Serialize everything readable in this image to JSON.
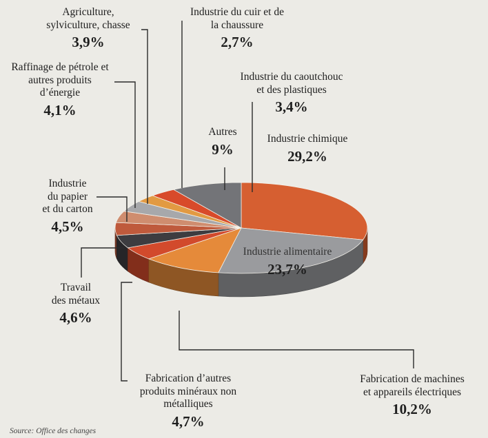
{
  "chart_data": {
    "type": "pie",
    "title": "",
    "slices": [
      {
        "label": "Industrie chimique",
        "value": 29.2,
        "display": "29,2%",
        "color": "#d65f31"
      },
      {
        "label": "Industrie alimentaire",
        "value": 23.7,
        "display": "23,7%",
        "color": "#9a9b9e"
      },
      {
        "label": "Fabrication de machines\net appareils électriques",
        "value": 10.2,
        "display": "10,2%",
        "color": "#e58a3a"
      },
      {
        "label": "Fabrication d’autres\nproduits minéraux non\nmétalliques",
        "value": 4.7,
        "display": "4,7%",
        "color": "#d24a2c"
      },
      {
        "label": "Travail\ndes métaux",
        "value": 4.6,
        "display": "4,6%",
        "color": "#3d3c40"
      },
      {
        "label": "Industrie\ndu papier\net du carton",
        "value": 4.5,
        "display": "4,5%",
        "color": "#bf5a3c"
      },
      {
        "label": "Raffinage de pétrole et\nautres produits\nd’énergie",
        "value": 4.1,
        "display": "4,1%",
        "color": "#cf8d6f"
      },
      {
        "label": "Agriculture,\nsylviculture, chasse",
        "value": 3.9,
        "display": "3,9%",
        "color": "#a7a8ab"
      },
      {
        "label": "Industrie du cuir et de\nla chaussure",
        "value": 2.7,
        "display": "2,7%",
        "color": "#e29a42"
      },
      {
        "label": "Industrie du caoutchouc\net des plastiques",
        "value": 3.4,
        "display": "3,4%",
        "color": "#d84a2a"
      },
      {
        "label": "Autres",
        "value": 9.0,
        "display": "9%",
        "color": "#737478"
      }
    ]
  },
  "source": "Source: Office des changes"
}
